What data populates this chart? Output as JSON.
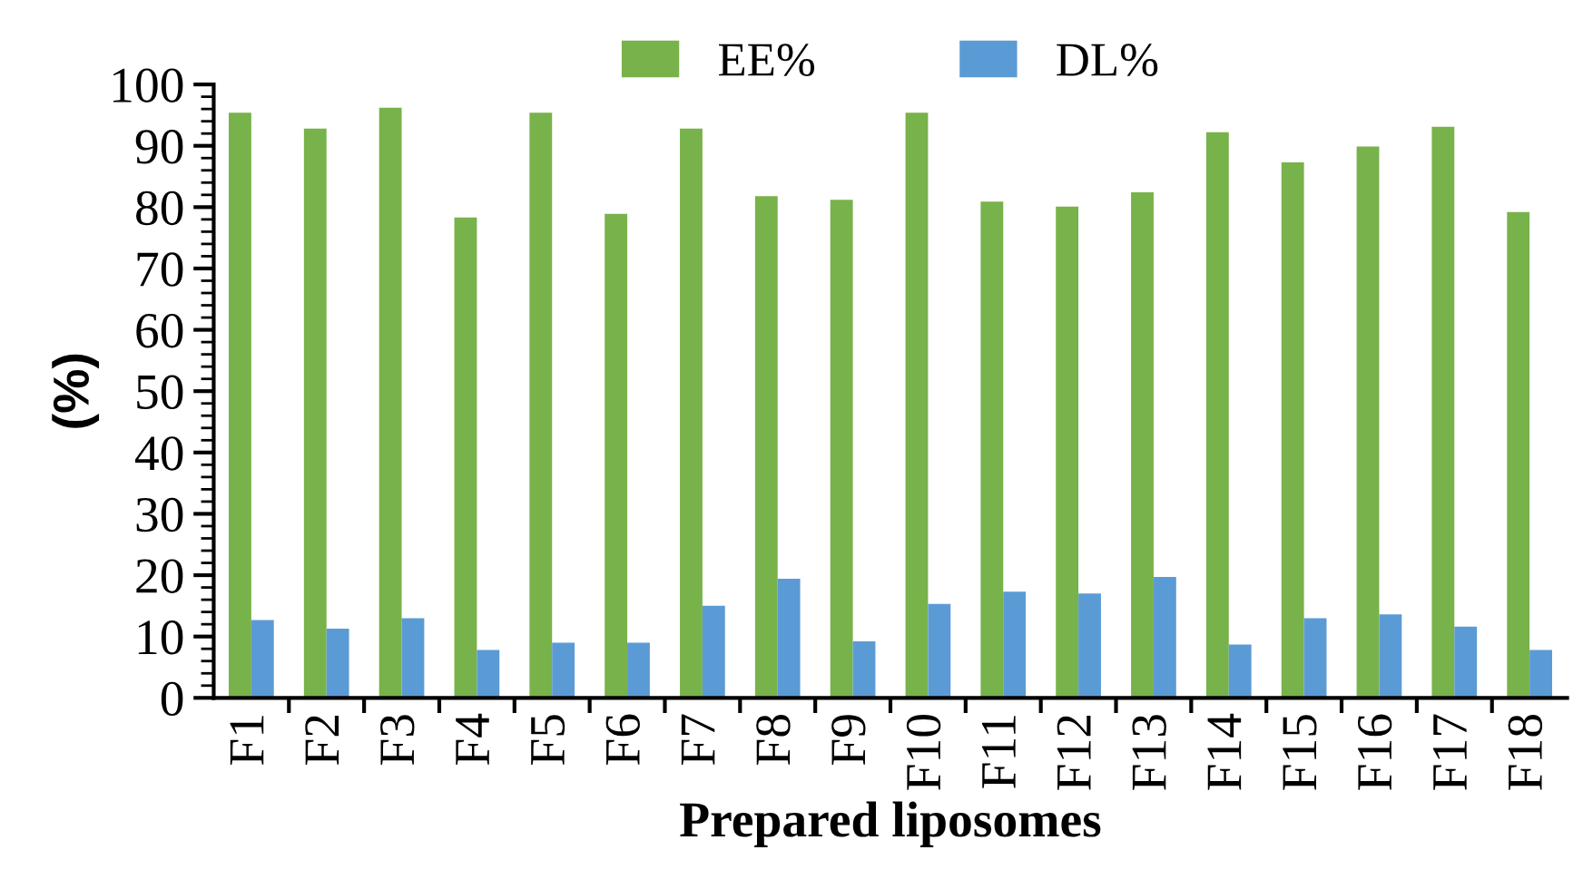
{
  "chart_data": {
    "type": "bar",
    "xlabel": "Prepared liposomes",
    "ylabel": "(%)",
    "categories": [
      "F1",
      "F2",
      "F3",
      "F4",
      "F5",
      "F6",
      "F7",
      "F8",
      "F9",
      "F10",
      "F11",
      "F12",
      "F13",
      "F14",
      "F15",
      "F16",
      "F17",
      "F18"
    ],
    "series": [
      {
        "name": "EE%",
        "color": "#78b24a",
        "values": [
          95.4,
          92.8,
          96.2,
          78.3,
          95.4,
          78.9,
          92.8,
          81.8,
          81.2,
          95.4,
          80.9,
          80.1,
          82.4,
          92.2,
          87.3,
          89.9,
          93.1,
          79.2
        ]
      },
      {
        "name": "DL%",
        "color": "#5b9bd5",
        "values": [
          12.7,
          11.3,
          13.0,
          7.8,
          9.0,
          9.0,
          15.0,
          19.4,
          9.2,
          15.3,
          17.3,
          17.0,
          19.7,
          8.7,
          13.0,
          13.6,
          11.6,
          7.8
        ]
      }
    ],
    "ylim": [
      0,
      100
    ],
    "yticks": [
      0,
      {
        "value": 2,
        "label": null
      },
      {
        "value": 4,
        "label": null
      },
      {
        "value": 6,
        "label": null
      },
      {
        "value": 8,
        "label": null
      },
      10,
      {
        "value": 12,
        "label": null
      },
      {
        "value": 14,
        "label": null
      },
      {
        "value": 16,
        "label": null
      },
      {
        "value": 18,
        "label": null
      },
      20,
      {
        "value": 22,
        "label": null
      },
      {
        "value": 24,
        "label": null
      },
      {
        "value": 26,
        "label": null
      },
      {
        "value": 28,
        "label": null
      },
      30,
      {
        "value": 32,
        "label": null
      },
      {
        "value": 34,
        "label": null
      },
      {
        "value": 36,
        "label": null
      },
      {
        "value": 38,
        "label": null
      },
      40,
      {
        "value": 42,
        "label": null
      },
      {
        "value": 44,
        "label": null
      },
      {
        "value": 46,
        "label": null
      },
      {
        "value": 48,
        "label": null
      },
      50,
      {
        "value": 52,
        "label": null
      },
      {
        "value": 54,
        "label": null
      },
      {
        "value": 56,
        "label": null
      },
      {
        "value": 58,
        "label": null
      },
      60,
      {
        "value": 62,
        "label": null
      },
      {
        "value": 64,
        "label": null
      },
      {
        "value": 66,
        "label": null
      },
      {
        "value": 68,
        "label": null
      },
      70,
      {
        "value": 72,
        "label": null
      },
      {
        "value": 74,
        "label": null
      },
      {
        "value": 76,
        "label": null
      },
      {
        "value": 78,
        "label": null
      },
      80,
      {
        "value": 82,
        "label": null
      },
      {
        "value": 84,
        "label": null
      },
      {
        "value": 86,
        "label": null
      },
      {
        "value": 88,
        "label": null
      },
      90,
      {
        "value": 92,
        "label": null
      },
      {
        "value": 94,
        "label": null
      },
      {
        "value": 96,
        "label": null
      },
      {
        "value": 98,
        "label": null
      },
      100
    ],
    "grid": false,
    "legend": "top"
  }
}
